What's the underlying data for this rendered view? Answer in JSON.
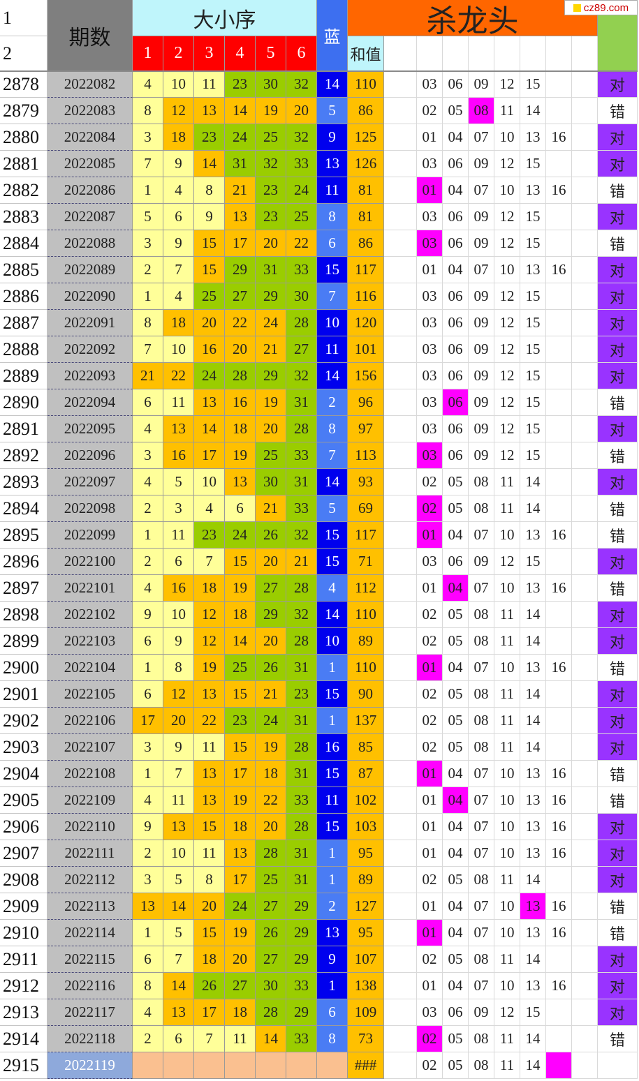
{
  "watermark": "cz89.com",
  "header": {
    "row_numbers": [
      "1",
      "2"
    ],
    "period_title": "期数",
    "order_title": "大小序",
    "order_cols": [
      "1",
      "2",
      "3",
      "4",
      "5",
      "6"
    ],
    "blue_title": "蓝",
    "sum_title": "和值",
    "kill_title": "杀龙头"
  },
  "colors": {
    "sheet_gray": "#c0c0c0",
    "header_cyan": "#bff5fb",
    "header_red": "#ff0000",
    "header_blue": "#3d6ff0",
    "header_orange": "#ff6600",
    "header_green": "#92d050",
    "level_1": "#ffff99",
    "level_2": "#ffc000",
    "level_3": "#9acd00",
    "blue_dark": "#0000ee",
    "blue_light": "#4a7cf4",
    "sum_bg": "#ffc000",
    "hit_magenta": "#ff00ff",
    "ok_purple": "#9933ff",
    "next_period_blue": "#8ea9db",
    "next_row_peach": "#fac090"
  },
  "rows": [
    {
      "rn": "2878",
      "period": "2022082",
      "nums": [
        "4",
        "10",
        "11",
        "23",
        "30",
        "32"
      ],
      "lv": [
        1,
        1,
        1,
        3,
        3,
        3
      ],
      "blue": "14",
      "bd": 1,
      "sum": "110",
      "kill": [
        "03",
        "06",
        "09",
        "12",
        "15",
        ""
      ],
      "hit": -1,
      "result": "对",
      "ok": 1
    },
    {
      "rn": "2879",
      "period": "2022083",
      "nums": [
        "8",
        "12",
        "13",
        "14",
        "19",
        "20"
      ],
      "lv": [
        1,
        2,
        2,
        2,
        2,
        2
      ],
      "blue": "5",
      "bd": 0,
      "sum": "86",
      "kill": [
        "02",
        "05",
        "08",
        "11",
        "14",
        ""
      ],
      "hit": 2,
      "result": "错",
      "ok": 0
    },
    {
      "rn": "2880",
      "period": "2022084",
      "nums": [
        "3",
        "18",
        "23",
        "24",
        "25",
        "32"
      ],
      "lv": [
        1,
        2,
        3,
        3,
        3,
        3
      ],
      "blue": "9",
      "bd": 1,
      "sum": "125",
      "kill": [
        "01",
        "04",
        "07",
        "10",
        "13",
        "16"
      ],
      "hit": -1,
      "result": "对",
      "ok": 1
    },
    {
      "rn": "2881",
      "period": "2022085",
      "nums": [
        "7",
        "9",
        "14",
        "31",
        "32",
        "33"
      ],
      "lv": [
        1,
        1,
        2,
        3,
        3,
        3
      ],
      "blue": "13",
      "bd": 1,
      "sum": "126",
      "kill": [
        "03",
        "06",
        "09",
        "12",
        "15",
        ""
      ],
      "hit": -1,
      "result": "对",
      "ok": 1
    },
    {
      "rn": "2882",
      "period": "2022086",
      "nums": [
        "1",
        "4",
        "8",
        "21",
        "23",
        "24"
      ],
      "lv": [
        1,
        1,
        1,
        2,
        3,
        3
      ],
      "blue": "11",
      "bd": 1,
      "sum": "81",
      "kill": [
        "01",
        "04",
        "07",
        "10",
        "13",
        "16"
      ],
      "hit": 0,
      "result": "错",
      "ok": 0
    },
    {
      "rn": "2883",
      "period": "2022087",
      "nums": [
        "5",
        "6",
        "9",
        "13",
        "23",
        "25"
      ],
      "lv": [
        1,
        1,
        1,
        2,
        3,
        3
      ],
      "blue": "8",
      "bd": 0,
      "sum": "81",
      "kill": [
        "03",
        "06",
        "09",
        "12",
        "15",
        ""
      ],
      "hit": -1,
      "result": "对",
      "ok": 1
    },
    {
      "rn": "2884",
      "period": "2022088",
      "nums": [
        "3",
        "9",
        "15",
        "17",
        "20",
        "22"
      ],
      "lv": [
        1,
        1,
        2,
        2,
        2,
        2
      ],
      "blue": "6",
      "bd": 0,
      "sum": "86",
      "kill": [
        "03",
        "06",
        "09",
        "12",
        "15",
        ""
      ],
      "hit": 0,
      "result": "错",
      "ok": 0
    },
    {
      "rn": "2885",
      "period": "2022089",
      "nums": [
        "2",
        "7",
        "15",
        "29",
        "31",
        "33"
      ],
      "lv": [
        1,
        1,
        2,
        3,
        3,
        3
      ],
      "blue": "15",
      "bd": 1,
      "sum": "117",
      "kill": [
        "01",
        "04",
        "07",
        "10",
        "13",
        "16"
      ],
      "hit": -1,
      "result": "对",
      "ok": 1
    },
    {
      "rn": "2886",
      "period": "2022090",
      "nums": [
        "1",
        "4",
        "25",
        "27",
        "29",
        "30"
      ],
      "lv": [
        1,
        1,
        3,
        3,
        3,
        3
      ],
      "blue": "7",
      "bd": 0,
      "sum": "116",
      "kill": [
        "03",
        "06",
        "09",
        "12",
        "15",
        ""
      ],
      "hit": -1,
      "result": "对",
      "ok": 1
    },
    {
      "rn": "2887",
      "period": "2022091",
      "nums": [
        "8",
        "18",
        "20",
        "22",
        "24",
        "28"
      ],
      "lv": [
        1,
        2,
        2,
        2,
        2,
        3
      ],
      "blue": "10",
      "bd": 1,
      "sum": "120",
      "kill": [
        "03",
        "06",
        "09",
        "12",
        "15",
        ""
      ],
      "hit": -1,
      "result": "对",
      "ok": 1
    },
    {
      "rn": "2888",
      "period": "2022092",
      "nums": [
        "7",
        "10",
        "16",
        "20",
        "21",
        "27"
      ],
      "lv": [
        1,
        1,
        2,
        2,
        2,
        3
      ],
      "blue": "11",
      "bd": 1,
      "sum": "101",
      "kill": [
        "03",
        "06",
        "09",
        "12",
        "15",
        ""
      ],
      "hit": -1,
      "result": "对",
      "ok": 1
    },
    {
      "rn": "2889",
      "period": "2022093",
      "nums": [
        "21",
        "22",
        "24",
        "28",
        "29",
        "32"
      ],
      "lv": [
        2,
        2,
        3,
        3,
        3,
        3
      ],
      "blue": "14",
      "bd": 1,
      "sum": "156",
      "kill": [
        "03",
        "06",
        "09",
        "12",
        "15",
        ""
      ],
      "hit": -1,
      "result": "对",
      "ok": 1
    },
    {
      "rn": "2890",
      "period": "2022094",
      "nums": [
        "6",
        "11",
        "13",
        "16",
        "19",
        "31"
      ],
      "lv": [
        1,
        1,
        2,
        2,
        2,
        3
      ],
      "blue": "2",
      "bd": 0,
      "sum": "96",
      "kill": [
        "03",
        "06",
        "09",
        "12",
        "15",
        ""
      ],
      "hit": 1,
      "result": "错",
      "ok": 0
    },
    {
      "rn": "2891",
      "period": "2022095",
      "nums": [
        "4",
        "13",
        "14",
        "18",
        "20",
        "28"
      ],
      "lv": [
        1,
        2,
        2,
        2,
        2,
        3
      ],
      "blue": "8",
      "bd": 0,
      "sum": "97",
      "kill": [
        "03",
        "06",
        "09",
        "12",
        "15",
        ""
      ],
      "hit": -1,
      "result": "对",
      "ok": 1
    },
    {
      "rn": "2892",
      "period": "2022096",
      "nums": [
        "3",
        "16",
        "17",
        "19",
        "25",
        "33"
      ],
      "lv": [
        1,
        2,
        2,
        2,
        3,
        3
      ],
      "blue": "7",
      "bd": 0,
      "sum": "113",
      "kill": [
        "03",
        "06",
        "09",
        "12",
        "15",
        ""
      ],
      "hit": 0,
      "result": "错",
      "ok": 0
    },
    {
      "rn": "2893",
      "period": "2022097",
      "nums": [
        "4",
        "5",
        "10",
        "13",
        "30",
        "31"
      ],
      "lv": [
        1,
        1,
        1,
        2,
        3,
        3
      ],
      "blue": "14",
      "bd": 1,
      "sum": "93",
      "kill": [
        "02",
        "05",
        "08",
        "11",
        "14",
        ""
      ],
      "hit": -1,
      "result": "对",
      "ok": 1
    },
    {
      "rn": "2894",
      "period": "2022098",
      "nums": [
        "2",
        "3",
        "4",
        "6",
        "21",
        "33"
      ],
      "lv": [
        1,
        1,
        1,
        1,
        2,
        3
      ],
      "blue": "5",
      "bd": 0,
      "sum": "69",
      "kill": [
        "02",
        "05",
        "08",
        "11",
        "14",
        ""
      ],
      "hit": 0,
      "result": "错",
      "ok": 0
    },
    {
      "rn": "2895",
      "period": "2022099",
      "nums": [
        "1",
        "11",
        "23",
        "24",
        "26",
        "32"
      ],
      "lv": [
        1,
        1,
        3,
        3,
        3,
        3
      ],
      "blue": "15",
      "bd": 1,
      "sum": "117",
      "kill": [
        "01",
        "04",
        "07",
        "10",
        "13",
        "16"
      ],
      "hit": 0,
      "result": "错",
      "ok": 0
    },
    {
      "rn": "2896",
      "period": "2022100",
      "nums": [
        "2",
        "6",
        "7",
        "15",
        "20",
        "21"
      ],
      "lv": [
        1,
        1,
        1,
        2,
        2,
        2
      ],
      "blue": "15",
      "bd": 1,
      "sum": "71",
      "kill": [
        "03",
        "06",
        "09",
        "12",
        "15",
        ""
      ],
      "hit": -1,
      "result": "对",
      "ok": 1
    },
    {
      "rn": "2897",
      "period": "2022101",
      "nums": [
        "4",
        "16",
        "18",
        "19",
        "27",
        "28"
      ],
      "lv": [
        1,
        2,
        2,
        2,
        3,
        3
      ],
      "blue": "4",
      "bd": 0,
      "sum": "112",
      "kill": [
        "01",
        "04",
        "07",
        "10",
        "13",
        "16"
      ],
      "hit": 1,
      "result": "错",
      "ok": 0
    },
    {
      "rn": "2898",
      "period": "2022102",
      "nums": [
        "9",
        "10",
        "12",
        "18",
        "29",
        "32"
      ],
      "lv": [
        1,
        1,
        2,
        2,
        3,
        3
      ],
      "blue": "14",
      "bd": 1,
      "sum": "110",
      "kill": [
        "02",
        "05",
        "08",
        "11",
        "14",
        ""
      ],
      "hit": -1,
      "result": "对",
      "ok": 1
    },
    {
      "rn": "2899",
      "period": "2022103",
      "nums": [
        "6",
        "9",
        "12",
        "14",
        "20",
        "28"
      ],
      "lv": [
        1,
        1,
        2,
        2,
        2,
        3
      ],
      "blue": "10",
      "bd": 1,
      "sum": "89",
      "kill": [
        "02",
        "05",
        "08",
        "11",
        "14",
        ""
      ],
      "hit": -1,
      "result": "对",
      "ok": 1
    },
    {
      "rn": "2900",
      "period": "2022104",
      "nums": [
        "1",
        "8",
        "19",
        "25",
        "26",
        "31"
      ],
      "lv": [
        1,
        1,
        2,
        3,
        3,
        3
      ],
      "blue": "1",
      "bd": 0,
      "sum": "110",
      "kill": [
        "01",
        "04",
        "07",
        "10",
        "13",
        "16"
      ],
      "hit": 0,
      "result": "错",
      "ok": 0
    },
    {
      "rn": "2901",
      "period": "2022105",
      "nums": [
        "6",
        "12",
        "13",
        "15",
        "21",
        "23"
      ],
      "lv": [
        1,
        2,
        2,
        2,
        2,
        3
      ],
      "blue": "15",
      "bd": 1,
      "sum": "90",
      "kill": [
        "02",
        "05",
        "08",
        "11",
        "14",
        ""
      ],
      "hit": -1,
      "result": "对",
      "ok": 1
    },
    {
      "rn": "2902",
      "period": "2022106",
      "nums": [
        "17",
        "20",
        "22",
        "23",
        "24",
        "31"
      ],
      "lv": [
        2,
        2,
        2,
        3,
        3,
        3
      ],
      "blue": "1",
      "bd": 0,
      "sum": "137",
      "kill": [
        "02",
        "05",
        "08",
        "11",
        "14",
        ""
      ],
      "hit": -1,
      "result": "对",
      "ok": 1
    },
    {
      "rn": "2903",
      "period": "2022107",
      "nums": [
        "3",
        "9",
        "11",
        "15",
        "19",
        "28"
      ],
      "lv": [
        1,
        1,
        1,
        2,
        2,
        3
      ],
      "blue": "16",
      "bd": 1,
      "sum": "85",
      "kill": [
        "02",
        "05",
        "08",
        "11",
        "14",
        ""
      ],
      "hit": -1,
      "result": "对",
      "ok": 1
    },
    {
      "rn": "2904",
      "period": "2022108",
      "nums": [
        "1",
        "7",
        "13",
        "17",
        "18",
        "31"
      ],
      "lv": [
        1,
        1,
        2,
        2,
        2,
        3
      ],
      "blue": "15",
      "bd": 1,
      "sum": "87",
      "kill": [
        "01",
        "04",
        "07",
        "10",
        "13",
        "16"
      ],
      "hit": 0,
      "result": "错",
      "ok": 0
    },
    {
      "rn": "2905",
      "period": "2022109",
      "nums": [
        "4",
        "11",
        "13",
        "19",
        "22",
        "33"
      ],
      "lv": [
        1,
        1,
        2,
        2,
        2,
        3
      ],
      "blue": "11",
      "bd": 1,
      "sum": "102",
      "kill": [
        "01",
        "04",
        "07",
        "10",
        "13",
        "16"
      ],
      "hit": 1,
      "result": "错",
      "ok": 0
    },
    {
      "rn": "2906",
      "period": "2022110",
      "nums": [
        "9",
        "13",
        "15",
        "18",
        "20",
        "28"
      ],
      "lv": [
        1,
        2,
        2,
        2,
        2,
        3
      ],
      "blue": "15",
      "bd": 1,
      "sum": "103",
      "kill": [
        "01",
        "04",
        "07",
        "10",
        "13",
        "16"
      ],
      "hit": -1,
      "result": "对",
      "ok": 1
    },
    {
      "rn": "2907",
      "period": "2022111",
      "nums": [
        "2",
        "10",
        "11",
        "13",
        "28",
        "31"
      ],
      "lv": [
        1,
        1,
        1,
        2,
        3,
        3
      ],
      "blue": "1",
      "bd": 0,
      "sum": "95",
      "kill": [
        "01",
        "04",
        "07",
        "10",
        "13",
        "16"
      ],
      "hit": -1,
      "result": "对",
      "ok": 1
    },
    {
      "rn": "2908",
      "period": "2022112",
      "nums": [
        "3",
        "5",
        "8",
        "17",
        "25",
        "31"
      ],
      "lv": [
        1,
        1,
        1,
        2,
        3,
        3
      ],
      "blue": "1",
      "bd": 0,
      "sum": "89",
      "kill": [
        "02",
        "05",
        "08",
        "11",
        "14",
        ""
      ],
      "hit": -1,
      "result": "对",
      "ok": 1
    },
    {
      "rn": "2909",
      "period": "2022113",
      "nums": [
        "13",
        "14",
        "20",
        "24",
        "27",
        "29"
      ],
      "lv": [
        2,
        2,
        2,
        3,
        3,
        3
      ],
      "blue": "2",
      "bd": 0,
      "sum": "127",
      "kill": [
        "01",
        "04",
        "07",
        "10",
        "13",
        "16"
      ],
      "hit": 4,
      "result": "错",
      "ok": 0
    },
    {
      "rn": "2910",
      "period": "2022114",
      "nums": [
        "1",
        "5",
        "15",
        "19",
        "26",
        "29"
      ],
      "lv": [
        1,
        1,
        2,
        2,
        3,
        3
      ],
      "blue": "13",
      "bd": 1,
      "sum": "95",
      "kill": [
        "01",
        "04",
        "07",
        "10",
        "13",
        "16"
      ],
      "hit": 0,
      "result": "错",
      "ok": 0
    },
    {
      "rn": "2911",
      "period": "2022115",
      "nums": [
        "6",
        "7",
        "18",
        "20",
        "27",
        "29"
      ],
      "lv": [
        1,
        1,
        2,
        2,
        3,
        3
      ],
      "blue": "9",
      "bd": 1,
      "sum": "107",
      "kill": [
        "02",
        "05",
        "08",
        "11",
        "14",
        ""
      ],
      "hit": -1,
      "result": "对",
      "ok": 1
    },
    {
      "rn": "2912",
      "period": "2022116",
      "nums": [
        "8",
        "14",
        "26",
        "27",
        "30",
        "33"
      ],
      "lv": [
        1,
        2,
        3,
        3,
        3,
        3
      ],
      "blue": "1",
      "bd": 1,
      "sum": "138",
      "kill": [
        "01",
        "04",
        "07",
        "10",
        "13",
        "16"
      ],
      "hit": -1,
      "result": "对",
      "ok": 1
    },
    {
      "rn": "2913",
      "period": "2022117",
      "nums": [
        "4",
        "13",
        "17",
        "18",
        "28",
        "29"
      ],
      "lv": [
        1,
        2,
        2,
        2,
        3,
        3
      ],
      "blue": "6",
      "bd": 0,
      "sum": "109",
      "kill": [
        "03",
        "06",
        "09",
        "12",
        "15",
        ""
      ],
      "hit": -1,
      "result": "对",
      "ok": 1
    },
    {
      "rn": "2914",
      "period": "2022118",
      "nums": [
        "2",
        "6",
        "7",
        "11",
        "14",
        "33"
      ],
      "lv": [
        1,
        1,
        1,
        1,
        2,
        3
      ],
      "blue": "8",
      "bd": 0,
      "sum": "73",
      "kill": [
        "02",
        "05",
        "08",
        "11",
        "14",
        ""
      ],
      "hit": 0,
      "result": "错",
      "ok": 0
    }
  ],
  "next_row": {
    "rn": "2915",
    "period": "2022119",
    "sum": "###",
    "kill": [
      "02",
      "05",
      "08",
      "11",
      "14",
      ""
    ],
    "hit": 5
  }
}
